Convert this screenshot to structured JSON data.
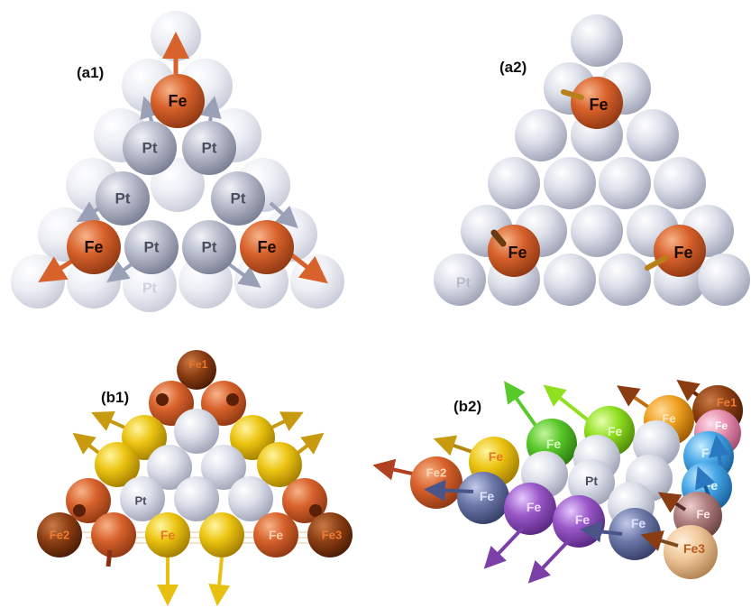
{
  "panels": {
    "a1": {
      "label": "(a1)",
      "atoms": {
        "fe_top": "Fe",
        "fe_left": "Fe",
        "fe_right": "Fe",
        "pt_1": "Pt",
        "pt_2": "Pt",
        "pt_3": "Pt",
        "pt_4": "Pt",
        "pt_5": "Pt",
        "pt_6": "Pt",
        "pt_faded": "Pt"
      }
    },
    "a2": {
      "label": "(a2)",
      "atoms": {
        "fe_top": "Fe",
        "fe_left": "Fe",
        "fe_right": "Fe",
        "pt_faded": "Pt"
      }
    },
    "b1": {
      "label": "(b1)",
      "atoms": {
        "fe1": "Fe1",
        "fe2": "Fe2",
        "fe3": "Fe3",
        "fe_center": "Fe",
        "fe_right": "Fe",
        "pt": "Pt"
      }
    },
    "b2": {
      "label": "(b2)",
      "atoms": {
        "fe1": "Fe1",
        "fe2": "Fe2",
        "fe3": "Fe3",
        "fe_yellow": "Fe",
        "fe_green1": "Fe",
        "fe_green2": "Fe",
        "fe_orange": "Fe",
        "fe_pink": "Fe",
        "fe_cyan": "Fe",
        "fe_blue": "Fe",
        "fe_mauve": "Fe",
        "fe_slate1": "Fe",
        "fe_violet1": "Fe",
        "fe_violet2": "Fe",
        "fe_slate2": "Fe",
        "pt": "Pt"
      }
    }
  },
  "colors": {
    "pt_light": "#d4d7e3",
    "pt_dark": "#a9adbd",
    "fe_orange": "#d8622c",
    "yellow": "#e8c010",
    "brown": "#7a3510",
    "green": "#58c82a",
    "lime": "#8ee020",
    "cyan": "#48a8e8",
    "slate": "#6f7aaa",
    "violet": "#9a58c8",
    "tan": "#f0c89a",
    "pink": "#e890b0"
  }
}
